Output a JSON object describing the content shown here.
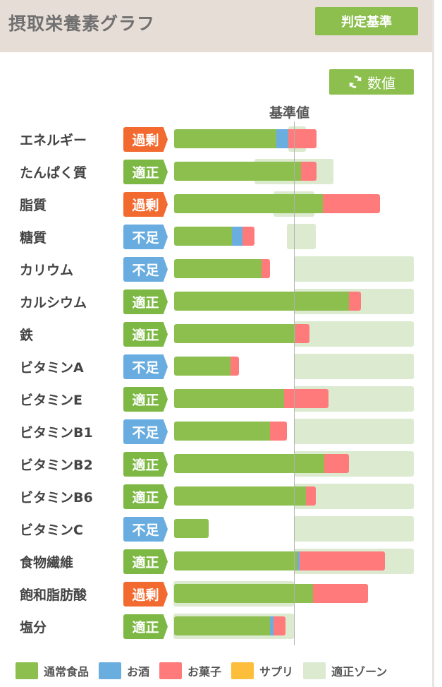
{
  "header": {
    "title": "摂取栄養素グラフ",
    "criteria_button": "判定基準"
  },
  "controls": {
    "value_button": "数値"
  },
  "colors": {
    "normal_food": "#8cbf4e",
    "alcohol": "#6aaee0",
    "snacks": "#ff7b7b",
    "supplement": "#fdbf3b",
    "zone": "#dcead0"
  },
  "chart_data": {
    "type": "bar",
    "orientation": "horizontal",
    "stacked": true,
    "baseline_label": "基準値",
    "unit": "percent of baseline value",
    "xlim": [
      0,
      200
    ],
    "categories": [
      "エネルギー",
      "たんぱく質",
      "脂質",
      "糖質",
      "カリウム",
      "カルシウム",
      "鉄",
      "ビタミンA",
      "ビタミンE",
      "ビタミンB1",
      "ビタミンB2",
      "ビタミンB6",
      "ビタミンC",
      "食物繊維",
      "飽和脂肪酸",
      "塩分"
    ],
    "status": [
      "過剰",
      "適正",
      "過剰",
      "不足",
      "不足",
      "適正",
      "適正",
      "不足",
      "適正",
      "不足",
      "適正",
      "適正",
      "不足",
      "適正",
      "過剰",
      "適正"
    ],
    "series": [
      {
        "name": "通常食品",
        "values": [
          85,
          106,
          124,
          48,
          73,
          146,
          101,
          47,
          92,
          80,
          125,
          110,
          29,
          103,
          116,
          80
        ]
      },
      {
        "name": "お酒",
        "values": [
          10,
          0,
          0,
          9,
          0,
          0,
          0,
          0,
          0,
          0,
          0,
          0,
          0,
          2,
          0,
          3
        ]
      },
      {
        "name": "お菓子",
        "values": [
          24,
          13,
          48,
          10,
          7,
          10,
          12,
          7,
          37,
          14,
          21,
          8,
          0,
          71,
          46,
          10
        ]
      },
      {
        "name": "サプリ",
        "values": [
          0,
          0,
          0,
          0,
          0,
          0,
          0,
          0,
          0,
          0,
          0,
          0,
          0,
          0,
          0,
          0
        ]
      }
    ],
    "zone_name": "適正ゾーン",
    "zones": [
      [
        95,
        110
      ],
      [
        67,
        133
      ],
      [
        83,
        117
      ],
      [
        94,
        118
      ],
      [
        100,
        200
      ],
      [
        100,
        200
      ],
      [
        100,
        200
      ],
      [
        100,
        200
      ],
      [
        100,
        200
      ],
      [
        100,
        200
      ],
      [
        100,
        200
      ],
      [
        100,
        200
      ],
      [
        100,
        200
      ],
      [
        100,
        200
      ],
      [
        0,
        100
      ],
      [
        0,
        100
      ]
    ],
    "legend": [
      "通常食品",
      "お酒",
      "お菓子",
      "サプリ",
      "適正ゾーン"
    ],
    "legend_placement": "bottom"
  }
}
